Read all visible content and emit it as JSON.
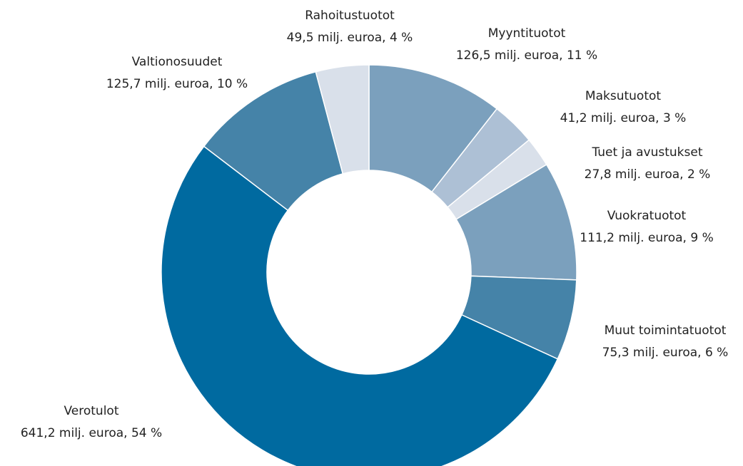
{
  "chart_data": {
    "type": "donut",
    "categories": [
      "Myyntituotot",
      "Maksutuotot",
      "Tuet ja avustukset",
      "Vuokratuotot",
      "Muut toimintatuotot",
      "Verotulot",
      "Valtionosuudet",
      "Rahoitustuotot"
    ],
    "values": [
      126.5,
      41.2,
      27.8,
      111.2,
      75.3,
      641.2,
      125.7,
      49.5
    ],
    "value_labels": [
      "126,5 milj. euroa, 11 %",
      "41,2 milj. euroa, 3 %",
      "27,8 milj. euroa, 2 %",
      "111,2 milj. euroa, 9 %",
      "75,3 milj. euroa, 6 %",
      "641,2 milj. euroa, 54 %",
      "125,7 milj. euroa, 10 %",
      "49,5 milj. euroa, 4 %"
    ],
    "colors": [
      "#7ba0bd",
      "#adc0d5",
      "#d9e0ea",
      "#7ba0bd",
      "#4583a8",
      "#006aa0",
      "#4583a8",
      "#d9e0ea"
    ]
  }
}
